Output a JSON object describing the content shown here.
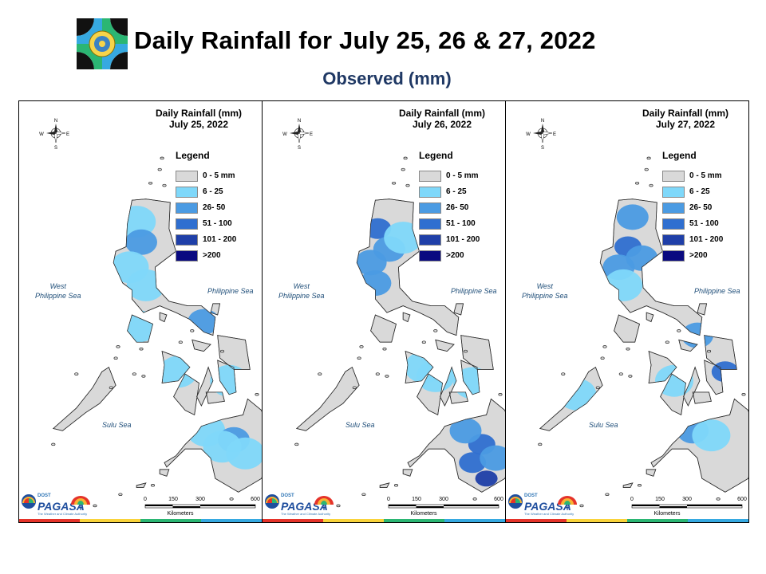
{
  "title": "Daily Rainfall for July 25, 26 & 27, 2022",
  "subtitle": "Observed (mm)",
  "colors": {
    "title": "#000000",
    "subtitle": "#1f3864",
    "land_dry": "#d9d9d9",
    "legend": [
      "#d9d9d9",
      "#7fd8fa",
      "#4b9be3",
      "#2f6fd0",
      "#1f3fa8",
      "#0a0a80"
    ]
  },
  "legend": {
    "title": "Legend",
    "items": [
      "0 - 5 mm",
      "6 - 25",
      "26- 50",
      "51 - 100",
      "101 - 200",
      ">200"
    ]
  },
  "labels": {
    "west_sea": "West\nPhilippine Sea",
    "east_sea": "Philippine Sea",
    "south_sea": "Sulu Sea",
    "scale_ticks": [
      "0",
      "150",
      "300",
      "600"
    ],
    "scale_unit": "Kilometers",
    "compass": [
      "N",
      "S",
      "E",
      "W"
    ],
    "brand": "PAGASA",
    "brand_top": "DOST",
    "brand_tag": "The Weather and Climate Authority"
  },
  "maps": [
    {
      "title_line1": "Daily Rainfall (mm)",
      "title_line2": "July 25, 2022",
      "rain": [
        {
          "lon": 120.8,
          "lat": 17.6,
          "level": 1
        },
        {
          "lon": 121.0,
          "lat": 16.7,
          "level": 2
        },
        {
          "lon": 120.5,
          "lat": 15.6,
          "level": 1
        },
        {
          "lon": 121.2,
          "lat": 14.8,
          "level": 1
        },
        {
          "lon": 120.9,
          "lat": 13.0,
          "level": 1
        },
        {
          "lon": 123.7,
          "lat": 13.2,
          "level": 2
        },
        {
          "lon": 122.6,
          "lat": 11.0,
          "level": 1
        },
        {
          "lon": 124.8,
          "lat": 10.6,
          "level": 1
        },
        {
          "lon": 123.8,
          "lat": 8.4,
          "level": 1
        },
        {
          "lon": 125.0,
          "lat": 8.0,
          "level": 2
        },
        {
          "lon": 124.5,
          "lat": 7.7,
          "level": 1
        },
        {
          "lon": 125.5,
          "lat": 7.4,
          "level": 1
        }
      ]
    },
    {
      "title_line1": "Daily Rainfall (mm)",
      "title_line2": "July 26, 2022",
      "rain": [
        {
          "lon": 120.7,
          "lat": 17.3,
          "level": 3
        },
        {
          "lon": 121.2,
          "lat": 16.4,
          "level": 2
        },
        {
          "lon": 120.4,
          "lat": 15.8,
          "level": 2
        },
        {
          "lon": 120.6,
          "lat": 14.9,
          "level": 2
        },
        {
          "lon": 121.8,
          "lat": 16.9,
          "level": 1
        },
        {
          "lon": 123.2,
          "lat": 10.8,
          "level": 1
        },
        {
          "lon": 124.8,
          "lat": 10.5,
          "level": 1
        },
        {
          "lon": 122.7,
          "lat": 11.2,
          "level": 1
        },
        {
          "lon": 125.2,
          "lat": 7.8,
          "level": 3
        },
        {
          "lon": 124.8,
          "lat": 7.0,
          "level": 3
        },
        {
          "lon": 125.8,
          "lat": 7.2,
          "level": 2
        },
        {
          "lon": 125.4,
          "lat": 6.3,
          "level": 4
        },
        {
          "lon": 124.5,
          "lat": 8.4,
          "level": 2
        }
      ]
    },
    {
      "title_line1": "Daily Rainfall (mm)",
      "title_line2": "July 27, 2022",
      "rain": [
        {
          "lon": 121.2,
          "lat": 17.8,
          "level": 2
        },
        {
          "lon": 121.0,
          "lat": 16.5,
          "level": 3
        },
        {
          "lon": 120.6,
          "lat": 15.6,
          "level": 2
        },
        {
          "lon": 121.6,
          "lat": 16.0,
          "level": 2
        },
        {
          "lon": 120.8,
          "lat": 14.8,
          "level": 1
        },
        {
          "lon": 124.0,
          "lat": 12.6,
          "level": 2
        },
        {
          "lon": 125.2,
          "lat": 11.0,
          "level": 3
        },
        {
          "lon": 123.0,
          "lat": 10.6,
          "level": 1
        },
        {
          "lon": 118.8,
          "lat": 10.0,
          "level": 1
        },
        {
          "lon": 123.8,
          "lat": 8.4,
          "level": 2
        },
        {
          "lon": 124.6,
          "lat": 8.2,
          "level": 1
        }
      ]
    }
  ]
}
